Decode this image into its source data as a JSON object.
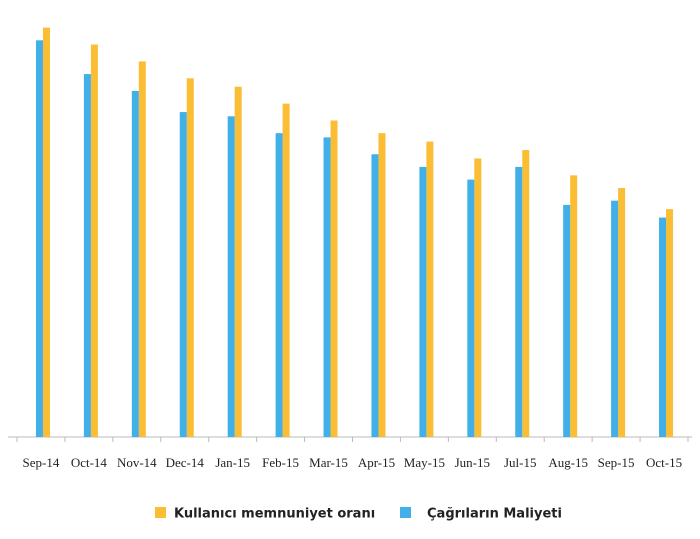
{
  "chart_data": {
    "type": "bar",
    "categories": [
      "Sep-14",
      "Oct-14",
      "Nov-14",
      "Dec-14",
      "Jan-15",
      "Feb-15",
      "Mar-15",
      "Apr-15",
      "May-15",
      "Jun-15",
      "Jul-15",
      "Aug-15",
      "Sep-15",
      "Oct-15"
    ],
    "series": [
      {
        "name": "Kullanıcı memnuniyet oranı",
        "color": "#fbbd34",
        "values": [
          97,
          93,
          89,
          85,
          83,
          79,
          75,
          72,
          70,
          66,
          68,
          62,
          59,
          54
        ]
      },
      {
        "name": "Çağrıların Maliyeti",
        "color": "#42b0e8",
        "values": [
          94,
          86,
          82,
          77,
          76,
          72,
          71,
          67,
          64,
          61,
          64,
          55,
          56,
          52
        ]
      }
    ],
    "ylim": [
      0,
      100
    ]
  }
}
